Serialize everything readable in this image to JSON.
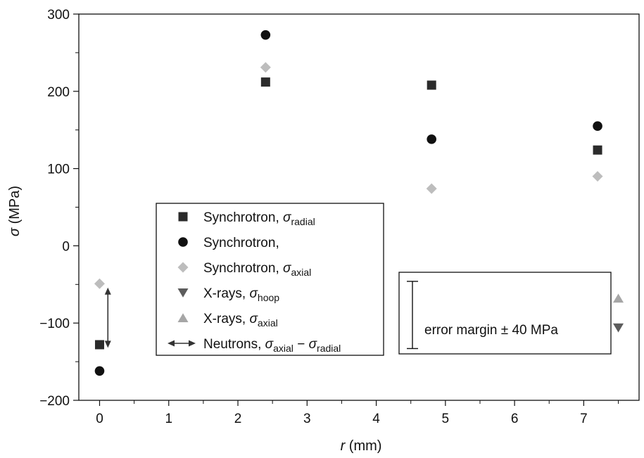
{
  "chart_data": {
    "type": "scatter",
    "title": "",
    "xlabel": {
      "symbol": "r",
      "unit": " (mm)"
    },
    "ylabel": {
      "symbol": "σ",
      "unit": " (MPa)"
    },
    "xlim": [
      -0.3,
      7.8
    ],
    "ylim": [
      -200,
      300
    ],
    "xticks": [
      0,
      1,
      2,
      3,
      4,
      5,
      6,
      7
    ],
    "yticks": [
      -200,
      -100,
      0,
      100,
      200,
      300
    ],
    "ytick_labels": [
      "−200",
      "−100",
      "0",
      "100",
      "200",
      "300"
    ],
    "grid": false,
    "legend_position": "center-left",
    "series": [
      {
        "name": "Synchrotron, ",
        "sym": "σ",
        "sub": "radial",
        "tail": "",
        "marker": "square",
        "color": "#2b2b2b",
        "points": [
          [
            0,
            -128
          ],
          [
            2.4,
            212
          ],
          [
            4.8,
            208
          ],
          [
            7.2,
            124
          ]
        ]
      },
      {
        "name": "Synchrotron,",
        "sym": "",
        "sub": "",
        "tail": "",
        "marker": "circle",
        "color": "#111111",
        "points": [
          [
            0,
            -162
          ],
          [
            2.4,
            273
          ],
          [
            4.8,
            138
          ],
          [
            7.2,
            155
          ]
        ]
      },
      {
        "name": "Synchrotron, ",
        "sym": "σ",
        "sub": "axial",
        "tail": "",
        "marker": "diamond",
        "color": "#bdbdbd",
        "points": [
          [
            0,
            -49
          ],
          [
            2.4,
            231
          ],
          [
            4.8,
            74
          ],
          [
            7.2,
            90
          ]
        ]
      },
      {
        "name": "X-rays, ",
        "sym": "σ",
        "sub": "hoop",
        "tail": "",
        "marker": "triangle-down",
        "color": "#5c5c5c",
        "points": [
          [
            7.5,
            -106
          ]
        ]
      },
      {
        "name": "X-rays, ",
        "sym": "σ",
        "sub": "axial",
        "tail": "",
        "marker": "triangle-up",
        "color": "#a6a6a6",
        "points": [
          [
            7.5,
            -68
          ]
        ]
      },
      {
        "name": "Neutrons, ",
        "sym": "σ",
        "sub": "axial",
        "tail": " − σ",
        "sub2": "radial",
        "marker": "double-arrow",
        "color": "#333333",
        "segments": [
          {
            "x": 0.12,
            "y1": -54,
            "y2": -132
          }
        ]
      }
    ],
    "annotation": {
      "text": "error margin ± 40 MPa",
      "bar_range": [
        -133,
        -46
      ],
      "box_position": "right"
    }
  }
}
